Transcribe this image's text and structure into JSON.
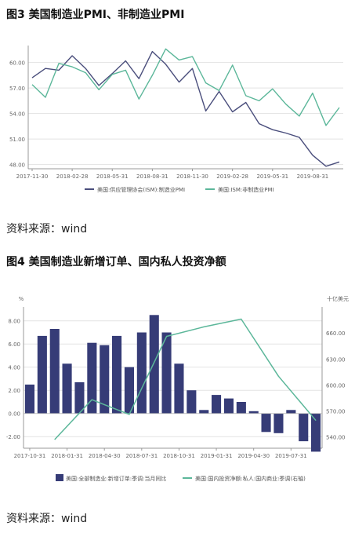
{
  "figures": [
    {
      "title": "图3 美国制造业PMI、非制造业PMI",
      "source": "资料来源：wind"
    },
    {
      "title": "图4 美国制造业新增订单、国内私人投资净额",
      "source": "资料来源：wind"
    }
  ],
  "chart_data": [
    {
      "type": "line",
      "title": "",
      "grid": true,
      "legend_position": "bottom",
      "x_ticks": [
        "2017-11-30",
        "2018-02-28",
        "2018-05-31",
        "2018-08-31",
        "2018-11-30",
        "2019-02-28",
        "2019-05-31",
        "2019-08-31"
      ],
      "x": [
        "2017-11",
        "2017-12",
        "2018-01",
        "2018-02",
        "2018-03",
        "2018-04",
        "2018-05",
        "2018-06",
        "2018-07",
        "2018-08",
        "2018-09",
        "2018-10",
        "2018-11",
        "2018-12",
        "2019-01",
        "2019-02",
        "2019-03",
        "2019-04",
        "2019-05",
        "2019-06",
        "2019-07",
        "2019-08",
        "2019-09",
        "2019-10"
      ],
      "y_ticks": [
        "48.00",
        "51.00",
        "54.00",
        "57.00",
        "60.00"
      ],
      "ylim": [
        47.5,
        62.0
      ],
      "series": [
        {
          "name": "美国:供应管理协会(ISM):制造业PMI",
          "color": "#4a4e7c",
          "values": [
            58.2,
            59.3,
            59.1,
            60.8,
            59.3,
            57.3,
            58.7,
            60.2,
            58.1,
            61.3,
            59.8,
            57.7,
            59.3,
            54.3,
            56.6,
            54.2,
            55.3,
            52.8,
            52.1,
            51.7,
            51.2,
            49.1,
            47.8,
            48.3
          ]
        },
        {
          "name": "美国:ISM:非制造业PMI",
          "color": "#5cb79a",
          "values": [
            57.4,
            55.9,
            59.9,
            59.5,
            58.8,
            56.8,
            58.6,
            59.1,
            55.7,
            58.5,
            61.6,
            60.3,
            60.7,
            57.6,
            56.7,
            59.7,
            56.1,
            55.5,
            56.9,
            55.1,
            53.7,
            56.4,
            52.6,
            54.7
          ]
        }
      ]
    },
    {
      "type": "bar",
      "title": "",
      "grid": true,
      "legend_position": "bottom",
      "y_unit_left": "%",
      "y_unit_right": "十亿美元",
      "x_ticks": [
        "2017-10-31",
        "2018-01-31",
        "2018-04-30",
        "2018-07-31",
        "2018-10-31",
        "2019-01-31",
        "2019-04-30",
        "2019-07-31"
      ],
      "x": [
        "2017-10",
        "2017-11",
        "2017-12",
        "2018-01",
        "2018-02",
        "2018-03",
        "2018-04",
        "2018-05",
        "2018-06",
        "2018-07",
        "2018-08",
        "2018-09",
        "2018-10",
        "2018-11",
        "2018-12",
        "2019-01",
        "2019-02",
        "2019-03",
        "2019-04",
        "2019-05",
        "2019-06",
        "2019-07",
        "2019-08",
        "2019-09"
      ],
      "y_ticks_left": [
        "-2.00",
        "0.00",
        "2.00",
        "4.00",
        "6.00",
        "8.00"
      ],
      "ylim_left": [
        -3.0,
        9.2
      ],
      "y_ticks_right": [
        "540.00",
        "570.00",
        "600.00",
        "630.00",
        "660.00"
      ],
      "ylim_right": [
        527,
        690
      ],
      "series": [
        {
          "name": "美国:全部制造业:新增订单:季调:当月同比",
          "kind": "bar",
          "axis": "left",
          "color": "#363c77",
          "values": [
            2.5,
            6.7,
            7.3,
            4.3,
            2.7,
            6.1,
            5.9,
            6.7,
            4.0,
            7.0,
            8.5,
            7.0,
            4.3,
            2.0,
            0.3,
            1.6,
            1.3,
            1.0,
            0.2,
            -1.6,
            -1.7,
            0.3,
            -2.4,
            -3.3
          ]
        },
        {
          "name": "美国:国内投资净额:私人:国内商业:季调(右轴)",
          "kind": "line",
          "axis": "right",
          "color": "#5cb79a",
          "x": [
            "2017-12",
            "2018-03",
            "2018-06",
            "2018-09",
            "2018-12",
            "2019-03",
            "2019-06",
            "2019-09"
          ],
          "values": [
            537,
            583,
            566,
            656,
            667,
            676,
            610,
            559
          ]
        }
      ]
    }
  ]
}
